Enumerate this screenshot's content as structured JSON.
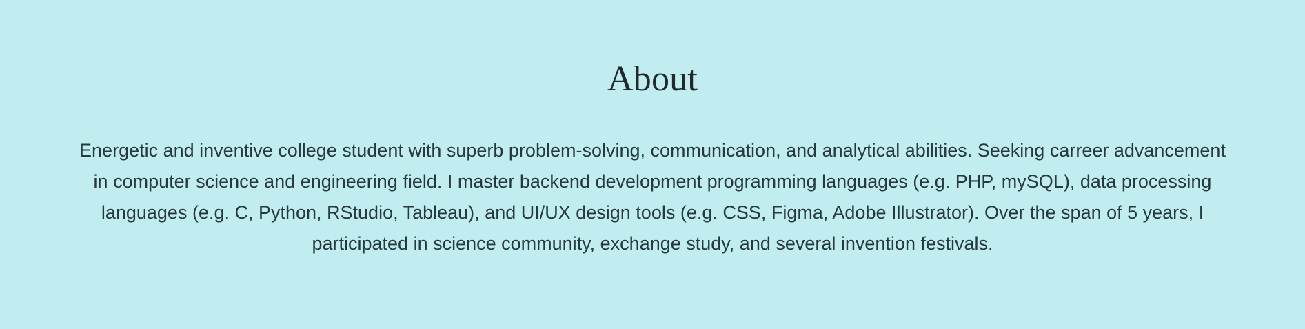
{
  "about": {
    "title": "About",
    "description": "Energetic and inventive college student with superb problem-solving, communication, and analytical abilities. Seeking carreer advancement in computer science and engineering field. I master backend development programming languages (e.g. PHP, mySQL), data processing languages (e.g. C, Python, RStudio, Tableau), and UI/UX design tools (e.g. CSS, Figma, Adobe Illustrator). Over the span of 5 years, I participated in science community, exchange study, and several invention festivals."
  },
  "theme": {
    "background": "#c1edf1",
    "title_color": "#202a2c",
    "text_color": "#26393c"
  }
}
